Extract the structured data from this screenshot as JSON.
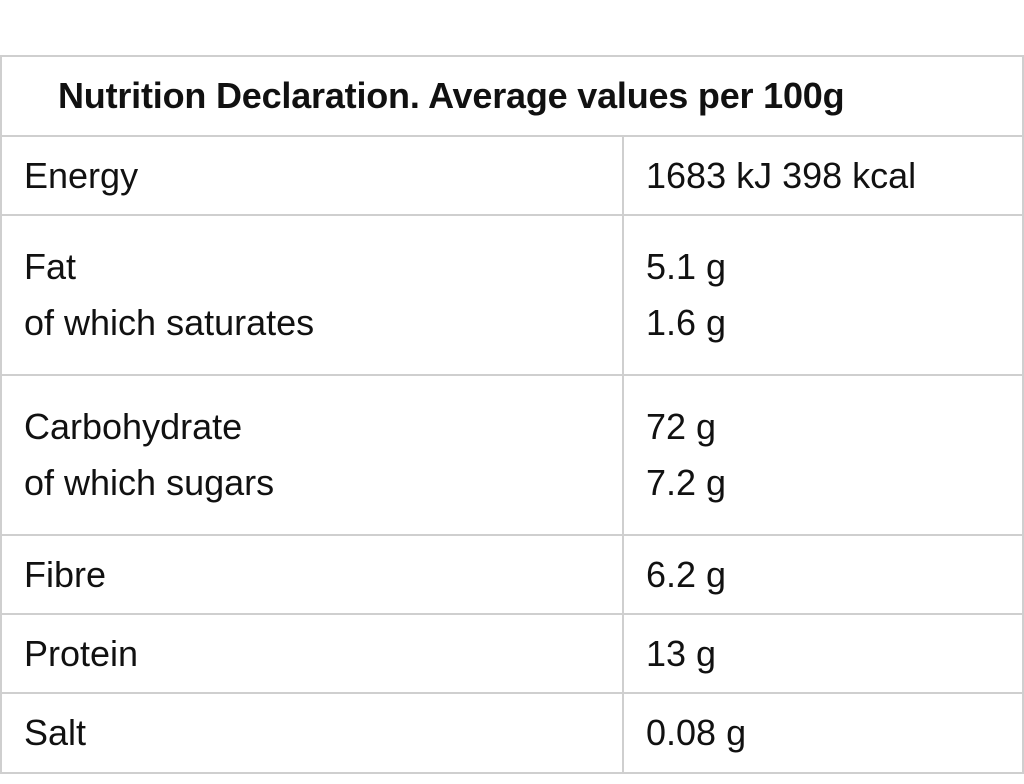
{
  "table": {
    "title": "Nutrition Declaration. Average values per 100g",
    "rows": [
      {
        "labels": [
          "Energy"
        ],
        "values": [
          "1683 kJ 398 kcal"
        ]
      },
      {
        "labels": [
          "Fat",
          "of which saturates"
        ],
        "values": [
          "5.1 g",
          "1.6 g"
        ]
      },
      {
        "labels": [
          "Carbohydrate",
          "of which sugars"
        ],
        "values": [
          "72 g",
          "7.2 g"
        ]
      },
      {
        "labels": [
          "Fibre"
        ],
        "values": [
          "6.2 g"
        ]
      },
      {
        "labels": [
          "Protein"
        ],
        "values": [
          "13 g"
        ]
      },
      {
        "labels": [
          "Salt"
        ],
        "values": [
          "0.08 g"
        ]
      }
    ]
  }
}
